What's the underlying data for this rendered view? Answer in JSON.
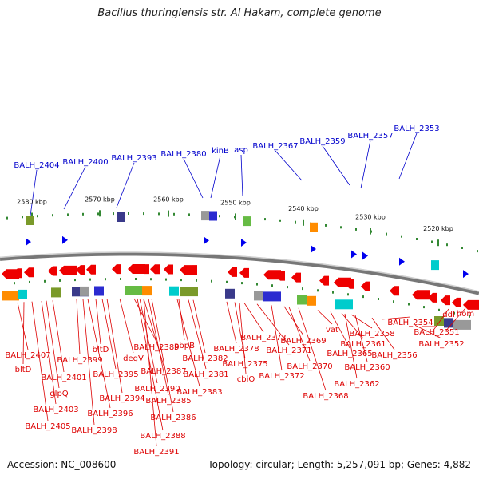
{
  "title": "Bacillus thuringiensis str. Al Hakam, complete genome",
  "footer": {
    "accession": "Accession: NC_008600",
    "summary": "Topology: circular; Length: 5,257,091 bp; Genes: 4,882"
  },
  "colors": {
    "forward_gene": "#0000ee",
    "reverse_gene": "#ee0000",
    "backbone": "#888888",
    "tick": "#338833",
    "blue_label": "#0000cc",
    "red_label": "#dd0000"
  },
  "scale_labels": [
    "2580 kbp",
    "2570 kbp",
    "2560 kbp",
    "2550 kbp",
    "2540 kbp",
    "2530 kbp",
    "2520 kbp"
  ],
  "top_labels": [
    "BALH_2404",
    "BALH_2400",
    "BALH_2393",
    "BALH_2380",
    "kinB",
    "asp",
    "BALH_2367",
    "BALH_2359",
    "BALH_2357",
    "BALH_2353"
  ],
  "bottom_labels": [
    "BALH_2407",
    "bltD",
    "BALH_2401",
    "glpQ",
    "BALH_2403",
    "BALH_2405",
    "BALH_2399",
    "bltD",
    "BALH_2395",
    "BALH_2394",
    "BALH_2396",
    "BALH_2398",
    "degV",
    "BALH_2389",
    "BALH_2390",
    "BALH_2387",
    "BALH_2385",
    "BALH_2386",
    "BALH_2388",
    "BALH_2391",
    "pbpB",
    "BALH_2382",
    "BALH_2381",
    "BALH_2383",
    "BALH_2378",
    "BALH_2375",
    "cbiO",
    "BALH_2373",
    "BALH_2371",
    "BALH_2372",
    "BALH_2369",
    "BALH_2370",
    "BALH_2368",
    "vat",
    "BALH_2365",
    "BALH_2362",
    "BALH_2358",
    "BALH_2361",
    "BALH_2360",
    "BALH_2356",
    "BALH_2354",
    "BALH_2351",
    "BALH_2352",
    "ddl",
    "hom"
  ]
}
